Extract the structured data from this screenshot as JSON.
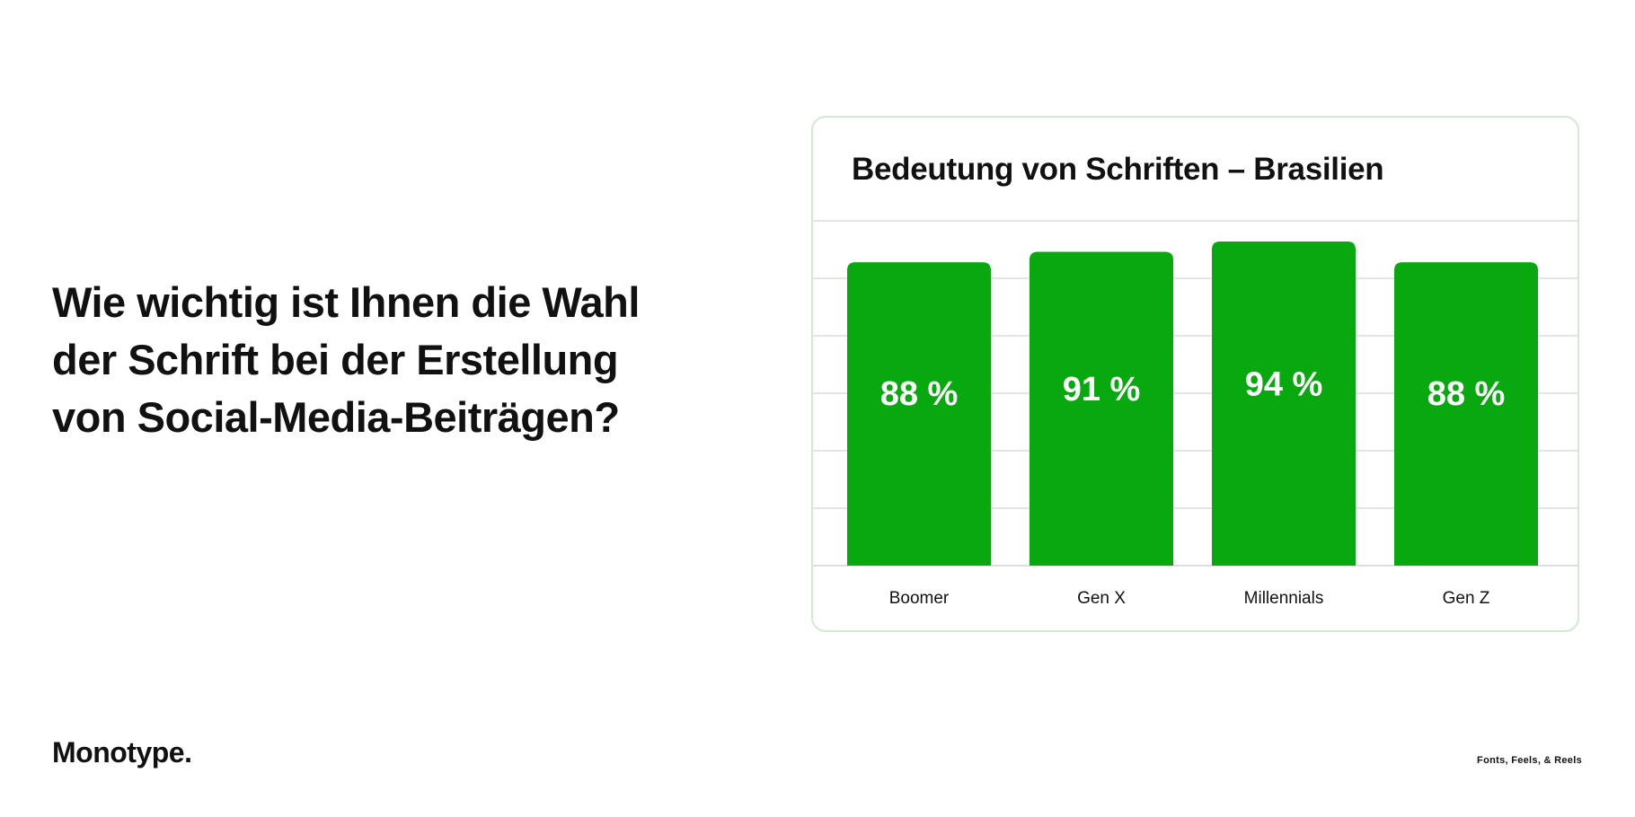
{
  "question": {
    "lines": [
      "Wie wichtig ist Ihnen die Wahl",
      "der Schrift bei der Erstellung",
      "von Social-Media-Beiträgen?"
    ]
  },
  "brand": {
    "logo_text": "Monotype.",
    "tagline": "Fonts, Feels, & Reels"
  },
  "colors": {
    "bar": "#08a90e",
    "grid": "#d4d4d4",
    "card_border": "#cfecd2",
    "label_on_bar": "#ffffff"
  },
  "chart_data": {
    "type": "bar",
    "title": "Bedeutung von Schriften – Brasilien",
    "categories": [
      "Boomer",
      "Gen X",
      "Millennials",
      "Gen Z"
    ],
    "values": [
      88,
      91,
      94,
      88
    ],
    "data_labels": [
      "88 %",
      "91 %",
      "94 %",
      "88 %"
    ],
    "xlabel": "",
    "ylabel": "",
    "ylim": [
      0,
      100
    ],
    "grid": true,
    "legend": "none"
  }
}
